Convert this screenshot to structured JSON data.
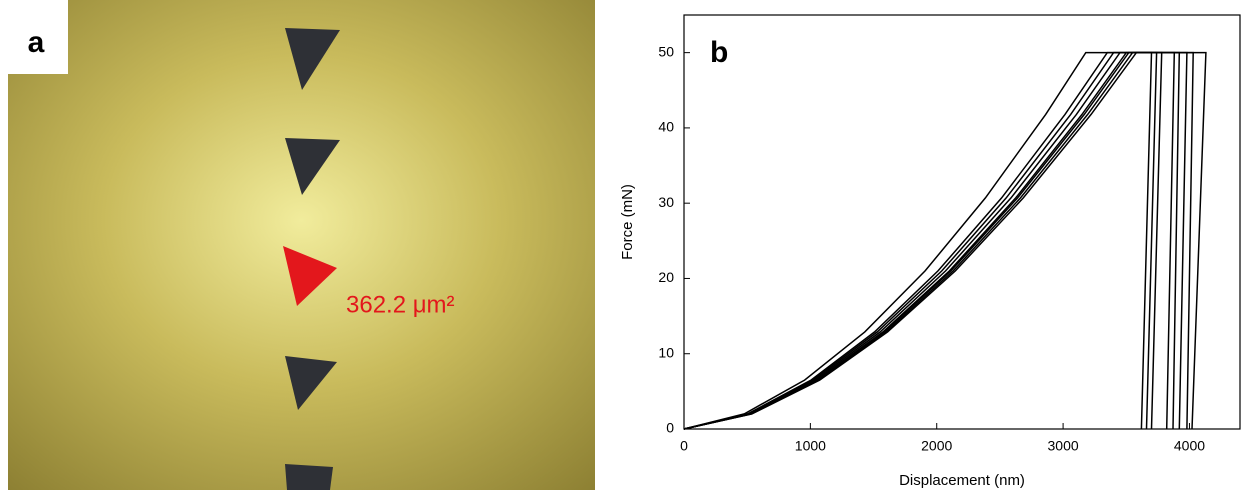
{
  "panel_a": {
    "label": "a",
    "annotation": "362.2 μm²"
  },
  "chart_data": {
    "type": "line",
    "panel_label": "b",
    "xlabel": "Displacement (nm)",
    "ylabel": "Force (mN)",
    "xlim": [
      0,
      4400
    ],
    "ylim": [
      0,
      55
    ],
    "xticks": [
      0,
      1000,
      2000,
      3000,
      4000
    ],
    "yticks": [
      0,
      10,
      20,
      30,
      40,
      50
    ],
    "series": [
      {
        "color": "#000000",
        "x": [
          0,
          477,
          954,
          1431,
          1908,
          2385,
          2862,
          3180,
          3700,
          3620
        ],
        "values": [
          0,
          2.0,
          6.5,
          12.9,
          21.0,
          30.7,
          41.8,
          50,
          50,
          0
        ]
      },
      {
        "color": "#000000",
        "x": [
          0,
          503,
          1005,
          1508,
          2010,
          2513,
          3015,
          3350,
          3740,
          3660
        ],
        "values": [
          0,
          2.0,
          6.5,
          12.9,
          21.0,
          30.7,
          41.8,
          50,
          50,
          0
        ]
      },
      {
        "color": "#000000",
        "x": [
          0,
          510,
          1020,
          1530,
          2040,
          2550,
          3060,
          3400,
          3780,
          3700
        ],
        "values": [
          0,
          2.0,
          6.5,
          12.9,
          21.0,
          30.7,
          41.8,
          50,
          50,
          0
        ]
      },
      {
        "color": "#000000",
        "x": [
          0,
          518,
          1035,
          1553,
          2070,
          2588,
          3105,
          3450,
          3880,
          3820
        ],
        "values": [
          0,
          2.0,
          6.5,
          12.9,
          21.0,
          30.7,
          41.8,
          50,
          50,
          0
        ]
      },
      {
        "color": "#000000",
        "x": [
          0,
          525,
          1050,
          1575,
          2100,
          2625,
          3150,
          3500,
          3920,
          3870
        ],
        "values": [
          0,
          2.0,
          6.5,
          12.9,
          21.0,
          30.7,
          41.8,
          50,
          50,
          0
        ]
      },
      {
        "color": "#000000",
        "x": [
          0,
          533,
          1065,
          1598,
          2130,
          2663,
          3195,
          3550,
          3980,
          3920
        ],
        "values": [
          0,
          2.0,
          6.5,
          12.9,
          21.0,
          30.7,
          41.8,
          50,
          50,
          0
        ]
      },
      {
        "color": "#000000",
        "x": [
          0,
          528,
          1056,
          1584,
          2112,
          2640,
          3168,
          3520,
          4030,
          3980
        ],
        "values": [
          0,
          2.0,
          6.5,
          12.9,
          21.0,
          30.7,
          41.8,
          50,
          50,
          0
        ]
      },
      {
        "color": "#000000",
        "x": [
          0,
          537,
          1074,
          1611,
          2148,
          2685,
          3222,
          3580,
          4130,
          4020
        ],
        "values": [
          0,
          2.0,
          6.5,
          12.9,
          21.0,
          30.7,
          41.8,
          50,
          50,
          0
        ]
      }
    ]
  }
}
